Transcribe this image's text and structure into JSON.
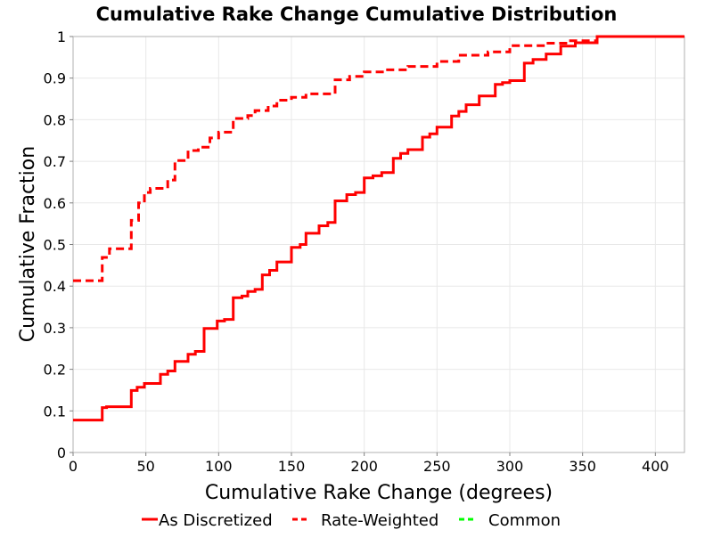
{
  "chart_data": {
    "type": "line",
    "title": "Cumulative Rake Change Cumulative Distribution",
    "xlabel": "Cumulative Rake Change (degrees)",
    "ylabel": "Cumulative Fraction",
    "xlim": [
      0,
      420
    ],
    "ylim": [
      0,
      1
    ],
    "x_ticks": [
      0,
      50,
      100,
      150,
      200,
      250,
      300,
      350,
      400
    ],
    "y_ticks": [
      0,
      0.1,
      0.2,
      0.3,
      0.4,
      0.5,
      0.6,
      0.7,
      0.8,
      0.9,
      1
    ],
    "grid": true,
    "legend_position": "bottom",
    "series": [
      {
        "name": "As Discretized",
        "style": "solid",
        "color": "#ff0000",
        "step": true,
        "points": [
          [
            0,
            0.078
          ],
          [
            20,
            0.078
          ],
          [
            20,
            0.108
          ],
          [
            23,
            0.108
          ],
          [
            23,
            0.11
          ],
          [
            40,
            0.11
          ],
          [
            40,
            0.149
          ],
          [
            44,
            0.149
          ],
          [
            44,
            0.157
          ],
          [
            49,
            0.157
          ],
          [
            49,
            0.166
          ],
          [
            60,
            0.166
          ],
          [
            60,
            0.188
          ],
          [
            65,
            0.188
          ],
          [
            65,
            0.196
          ],
          [
            70,
            0.196
          ],
          [
            70,
            0.219
          ],
          [
            79,
            0.219
          ],
          [
            79,
            0.236
          ],
          [
            84,
            0.236
          ],
          [
            84,
            0.243
          ],
          [
            90,
            0.243
          ],
          [
            90,
            0.298
          ],
          [
            99,
            0.298
          ],
          [
            99,
            0.316
          ],
          [
            104,
            0.316
          ],
          [
            104,
            0.32
          ],
          [
            110,
            0.32
          ],
          [
            110,
            0.372
          ],
          [
            116,
            0.372
          ],
          [
            116,
            0.376
          ],
          [
            120,
            0.376
          ],
          [
            120,
            0.387
          ],
          [
            125,
            0.387
          ],
          [
            125,
            0.392
          ],
          [
            130,
            0.392
          ],
          [
            130,
            0.427
          ],
          [
            135,
            0.427
          ],
          [
            135,
            0.438
          ],
          [
            140,
            0.438
          ],
          [
            140,
            0.458
          ],
          [
            150,
            0.458
          ],
          [
            150,
            0.493
          ],
          [
            156,
            0.493
          ],
          [
            156,
            0.5
          ],
          [
            160,
            0.5
          ],
          [
            160,
            0.527
          ],
          [
            169,
            0.527
          ],
          [
            169,
            0.545
          ],
          [
            175,
            0.545
          ],
          [
            175,
            0.553
          ],
          [
            180,
            0.553
          ],
          [
            180,
            0.605
          ],
          [
            188,
            0.605
          ],
          [
            188,
            0.62
          ],
          [
            194,
            0.62
          ],
          [
            194,
            0.625
          ],
          [
            200,
            0.625
          ],
          [
            200,
            0.66
          ],
          [
            206,
            0.66
          ],
          [
            206,
            0.665
          ],
          [
            212,
            0.665
          ],
          [
            212,
            0.673
          ],
          [
            220,
            0.673
          ],
          [
            220,
            0.707
          ],
          [
            225,
            0.707
          ],
          [
            225,
            0.719
          ],
          [
            230,
            0.719
          ],
          [
            230,
            0.728
          ],
          [
            240,
            0.728
          ],
          [
            240,
            0.758
          ],
          [
            245,
            0.758
          ],
          [
            245,
            0.766
          ],
          [
            250,
            0.766
          ],
          [
            250,
            0.782
          ],
          [
            260,
            0.782
          ],
          [
            260,
            0.809
          ],
          [
            265,
            0.809
          ],
          [
            265,
            0.82
          ],
          [
            270,
            0.82
          ],
          [
            270,
            0.836
          ],
          [
            279,
            0.836
          ],
          [
            279,
            0.857
          ],
          [
            290,
            0.857
          ],
          [
            290,
            0.885
          ],
          [
            295,
            0.885
          ],
          [
            295,
            0.889
          ],
          [
            300,
            0.889
          ],
          [
            300,
            0.894
          ],
          [
            310,
            0.894
          ],
          [
            310,
            0.936
          ],
          [
            316,
            0.936
          ],
          [
            316,
            0.945
          ],
          [
            325,
            0.945
          ],
          [
            325,
            0.958
          ],
          [
            335,
            0.958
          ],
          [
            335,
            0.977
          ],
          [
            345,
            0.977
          ],
          [
            345,
            0.985
          ],
          [
            360,
            0.985
          ],
          [
            360,
            1
          ],
          [
            420,
            1
          ]
        ]
      },
      {
        "name": "Rate-Weighted",
        "style": "dashed",
        "color": "#ff0000",
        "step": true,
        "points": [
          [
            0,
            0.413
          ],
          [
            20,
            0.413
          ],
          [
            20,
            0.469
          ],
          [
            25,
            0.469
          ],
          [
            25,
            0.49
          ],
          [
            40,
            0.49
          ],
          [
            40,
            0.558
          ],
          [
            45,
            0.558
          ],
          [
            45,
            0.6
          ],
          [
            49,
            0.6
          ],
          [
            49,
            0.625
          ],
          [
            53,
            0.625
          ],
          [
            53,
            0.635
          ],
          [
            65,
            0.635
          ],
          [
            65,
            0.655
          ],
          [
            70,
            0.655
          ],
          [
            70,
            0.702
          ],
          [
            79,
            0.702
          ],
          [
            79,
            0.726
          ],
          [
            86,
            0.726
          ],
          [
            86,
            0.734
          ],
          [
            94,
            0.734
          ],
          [
            94,
            0.756
          ],
          [
            100,
            0.756
          ],
          [
            100,
            0.77
          ],
          [
            110,
            0.77
          ],
          [
            110,
            0.803
          ],
          [
            120,
            0.803
          ],
          [
            120,
            0.81
          ],
          [
            125,
            0.81
          ],
          [
            125,
            0.822
          ],
          [
            134,
            0.822
          ],
          [
            134,
            0.833
          ],
          [
            140,
            0.833
          ],
          [
            140,
            0.847
          ],
          [
            150,
            0.847
          ],
          [
            150,
            0.854
          ],
          [
            160,
            0.854
          ],
          [
            160,
            0.862
          ],
          [
            180,
            0.862
          ],
          [
            180,
            0.896
          ],
          [
            190,
            0.896
          ],
          [
            190,
            0.904
          ],
          [
            200,
            0.904
          ],
          [
            200,
            0.915
          ],
          [
            215,
            0.915
          ],
          [
            215,
            0.92
          ],
          [
            230,
            0.92
          ],
          [
            230,
            0.928
          ],
          [
            250,
            0.928
          ],
          [
            250,
            0.94
          ],
          [
            265,
            0.94
          ],
          [
            265,
            0.955
          ],
          [
            285,
            0.955
          ],
          [
            285,
            0.963
          ],
          [
            300,
            0.963
          ],
          [
            300,
            0.978
          ],
          [
            325,
            0.978
          ],
          [
            325,
            0.984
          ],
          [
            340,
            0.984
          ],
          [
            340,
            0.99
          ],
          [
            360,
            0.99
          ],
          [
            360,
            1
          ],
          [
            420,
            1
          ]
        ]
      },
      {
        "name": "Common",
        "style": "dashed",
        "color": "#00ff00",
        "step": true,
        "points": []
      }
    ]
  }
}
